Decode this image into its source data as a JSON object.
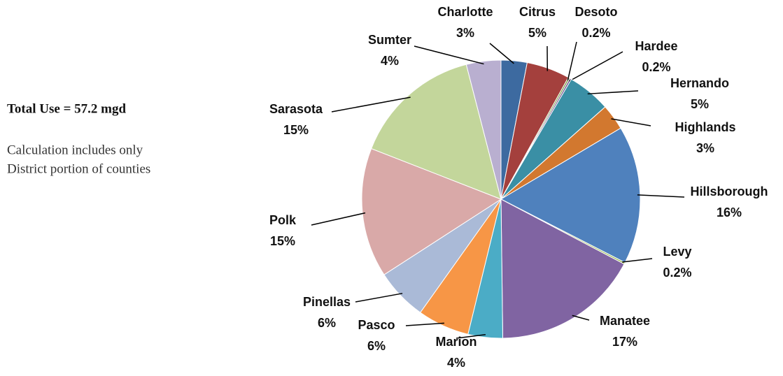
{
  "chart_data": {
    "type": "pie",
    "categories": [
      "Charlotte",
      "Citrus",
      "Desoto",
      "Hardee",
      "Hernando",
      "Highlands",
      "Hillsborough",
      "Levy",
      "Manatee",
      "Marion",
      "Pasco",
      "Pinellas",
      "Polk",
      "Sarasota",
      "Sumter"
    ],
    "values": [
      3,
      5,
      0.2,
      0.2,
      5,
      3,
      16,
      0.2,
      17,
      4,
      6,
      6,
      15,
      15,
      4
    ],
    "value_labels": [
      "3%",
      "5%",
      "0.2%",
      "0.2%",
      "5%",
      "3%",
      "16%",
      "0.2%",
      "17%",
      "4%",
      "6%",
      "6%",
      "15%",
      "15%",
      "4%"
    ],
    "colors": [
      "#3d6aa0",
      "#a4403d",
      "#7f9a44",
      "#6a4d8a",
      "#3a8fa5",
      "#d2782f",
      "#4f81bd",
      "#9bbb59",
      "#8064a2",
      "#4bacc6",
      "#f79646",
      "#aabad7",
      "#d9a9a8",
      "#c3d69b",
      "#b9afd0"
    ],
    "title": "Total Use = 57.2 mgd",
    "note": [
      "Calculation includes only",
      "District portion of counties"
    ]
  }
}
